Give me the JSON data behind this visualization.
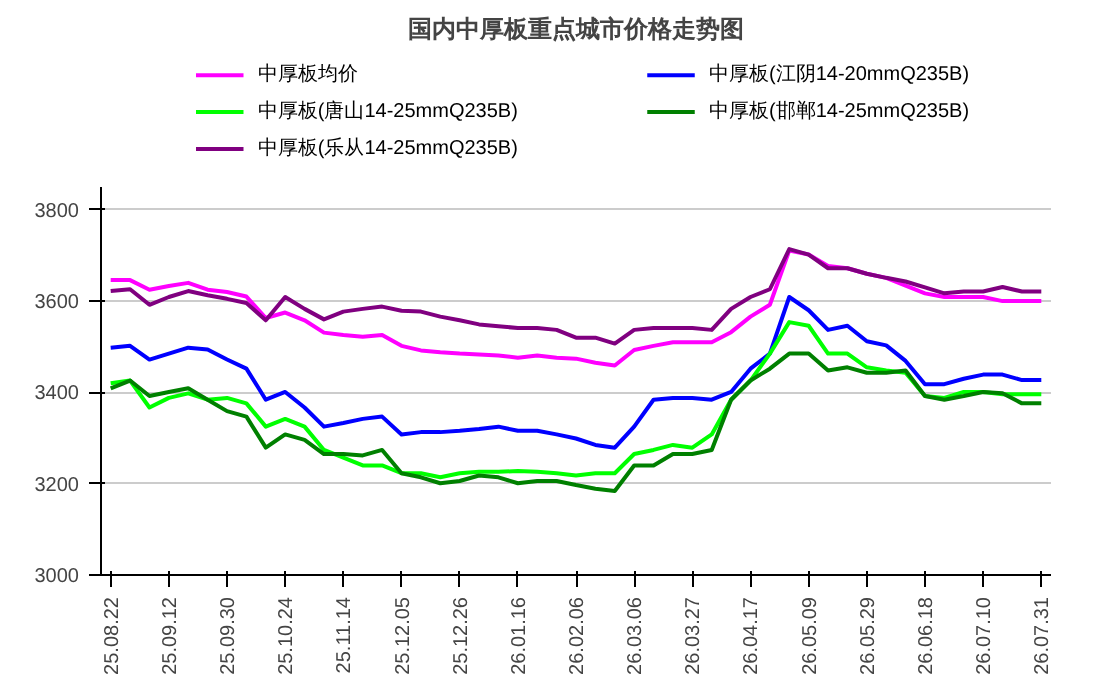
{
  "chart_data": {
    "type": "line",
    "title": "国内中厚板重点城市价格走势图",
    "categories": [
      "25.08.22",
      null,
      null,
      "25.09.12",
      null,
      null,
      "25.09.30",
      null,
      null,
      "25.10.24",
      null,
      null,
      "25.11.14",
      null,
      null,
      "25.12.05",
      null,
      null,
      "25.12.26",
      null,
      null,
      "26.01.16",
      null,
      null,
      "26.02.06",
      null,
      null,
      "26.03.06",
      null,
      null,
      "26.03.27",
      null,
      null,
      "26.04.17",
      null,
      null,
      "26.05.09",
      null,
      null,
      "26.05.29",
      null,
      null,
      "26.06.18",
      null,
      null,
      "26.07.10",
      null,
      null,
      "26.07.31"
    ],
    "series": [
      {
        "name": "中厚板均价",
        "color": "#ff00ff",
        "values": [
          3646,
          3646,
          3625,
          3633,
          3640,
          3625,
          3620,
          3610,
          3563,
          3575,
          3558,
          3531,
          3526,
          3522,
          3526,
          3502,
          3492,
          3488,
          3485,
          3483,
          3481,
          3476,
          3481,
          3476,
          3474,
          3465,
          3459,
          3493,
          3502,
          3510,
          3510,
          3510,
          3532,
          3566,
          3592,
          3711,
          3702,
          3677,
          3672,
          3660,
          3651,
          3634,
          3617,
          3609,
          3609,
          3609,
          3600,
          3600,
          3600
        ]
      },
      {
        "name": "中厚板(江阴14-20mmQ235B)",
        "color": "#0000ff",
        "values": [
          3498,
          3502,
          3472,
          3485,
          3498,
          3494,
          3472,
          3452,
          3384,
          3401,
          3367,
          3325,
          3333,
          3342,
          3347,
          3308,
          3313,
          3313,
          3316,
          3320,
          3325,
          3316,
          3316,
          3308,
          3299,
          3285,
          3279,
          3325,
          3384,
          3388,
          3388,
          3384,
          3401,
          3452,
          3485,
          3609,
          3580,
          3537,
          3546,
          3512,
          3503,
          3469,
          3418,
          3418,
          3430,
          3439,
          3439,
          3427,
          3427
        ]
      },
      {
        "name": "中厚板(唐山14-25mmQ235B)",
        "color": "#00ff00",
        "values": [
          3420,
          3426,
          3367,
          3388,
          3398,
          3384,
          3388,
          3376,
          3325,
          3342,
          3325,
          3274,
          3257,
          3240,
          3240,
          3223,
          3223,
          3214,
          3223,
          3226,
          3226,
          3228,
          3226,
          3223,
          3218,
          3223,
          3223,
          3265,
          3274,
          3285,
          3279,
          3308,
          3384,
          3426,
          3485,
          3554,
          3546,
          3485,
          3485,
          3455,
          3448,
          3443,
          3392,
          3388,
          3401,
          3401,
          3396,
          3396,
          3396
        ]
      },
      {
        "name": "中厚板(邯郸14-25mmQ235B)",
        "color": "#008000",
        "values": [
          3409,
          3426,
          3392,
          3401,
          3409,
          3384,
          3359,
          3347,
          3279,
          3308,
          3296,
          3265,
          3265,
          3262,
          3274,
          3223,
          3214,
          3201,
          3206,
          3218,
          3214,
          3201,
          3206,
          3206,
          3197,
          3189,
          3184,
          3240,
          3240,
          3265,
          3265,
          3274,
          3384,
          3426,
          3452,
          3485,
          3485,
          3448,
          3455,
          3443,
          3443,
          3448,
          3392,
          3384,
          3392,
          3401,
          3398,
          3376,
          3376
        ]
      },
      {
        "name": "中厚板(乐从14-25mmQ235B)",
        "color": "#800080",
        "values": [
          3622,
          3626,
          3592,
          3609,
          3622,
          3613,
          3605,
          3596,
          3558,
          3609,
          3583,
          3560,
          3577,
          3583,
          3588,
          3579,
          3577,
          3566,
          3558,
          3549,
          3545,
          3541,
          3541,
          3537,
          3520,
          3520,
          3507,
          3537,
          3541,
          3541,
          3541,
          3537,
          3583,
          3609,
          3626,
          3714,
          3702,
          3672,
          3672,
          3660,
          3651,
          3643,
          3630,
          3617,
          3621,
          3621,
          3631,
          3621,
          3621
        ]
      }
    ],
    "ylim": [
      3000,
      3850
    ],
    "yticks": [
      3000,
      3200,
      3400,
      3600,
      3800
    ],
    "grid": "y",
    "legend": "top",
    "marker": "none",
    "line_style": "solid"
  }
}
